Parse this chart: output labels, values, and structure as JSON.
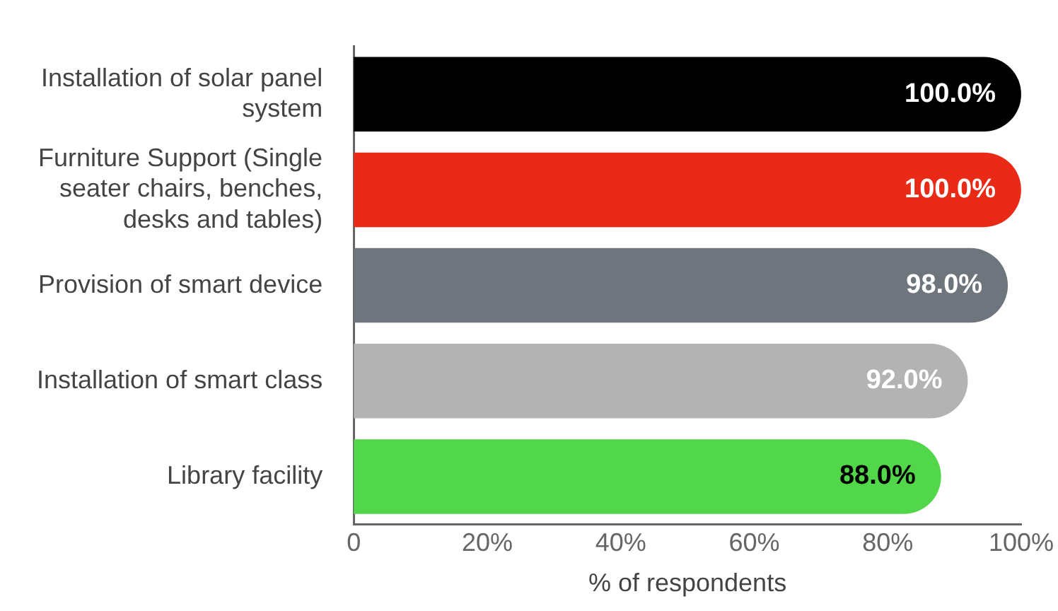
{
  "chart_data": {
    "type": "bar",
    "orientation": "horizontal",
    "xlabel": "% of respondents",
    "categories": [
      "Installation of solar panel system",
      "Furniture Support (Single seater chairs, benches, desks and tables)",
      "Provision of smart device",
      "Installation of smart class",
      "Library facility"
    ],
    "values": [
      100,
      100,
      98,
      92,
      88
    ],
    "colors": [
      "#000000",
      "#e82a17",
      "#6f757d",
      "#b3b3b3",
      "#52d64a"
    ],
    "value_labels": [
      "100.0%",
      "100.0%",
      "98.0%",
      "92.0%",
      "88.0%"
    ],
    "xlim": [
      0,
      100
    ],
    "xticks": [
      {
        "value": 0,
        "label": "0"
      },
      {
        "value": 20,
        "label": "20%"
      },
      {
        "value": 40,
        "label": "40%"
      },
      {
        "value": 60,
        "label": "60%"
      },
      {
        "value": 80,
        "label": "80%"
      },
      {
        "value": 100,
        "label": "100%"
      }
    ],
    "grid": false,
    "legend": false
  }
}
